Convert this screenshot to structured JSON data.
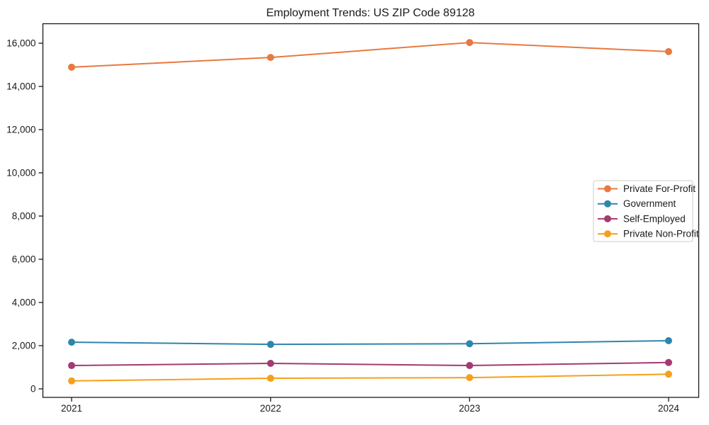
{
  "chart_data": {
    "type": "line",
    "title": "Employment Trends: US ZIP Code 89128",
    "xlabel": "",
    "ylabel": "",
    "categories": [
      "2021",
      "2022",
      "2023",
      "2024"
    ],
    "series": [
      {
        "name": "Private For-Profit",
        "color": "#E8793F",
        "values": [
          14890,
          15340,
          16030,
          15610
        ]
      },
      {
        "name": "Government",
        "color": "#2E86AB",
        "values": [
          2160,
          2060,
          2090,
          2230
        ]
      },
      {
        "name": "Self-Employed",
        "color": "#A23B72",
        "values": [
          1080,
          1180,
          1080,
          1220
        ]
      },
      {
        "name": "Private Non-Profit",
        "color": "#F5A01B",
        "values": [
          370,
          490,
          520,
          680
        ]
      }
    ],
    "y_ticks": [
      0,
      2000,
      4000,
      6000,
      8000,
      10000,
      12000,
      14000,
      16000
    ],
    "ylim": [
      0,
      16000
    ],
    "grid": false,
    "marker": "circle",
    "legend_position": "center-right",
    "axis_color": "#1a1a1a",
    "text_color": "#1a1a1a",
    "legend_border_color": "#cccccc",
    "background_color": "#ffffff"
  }
}
